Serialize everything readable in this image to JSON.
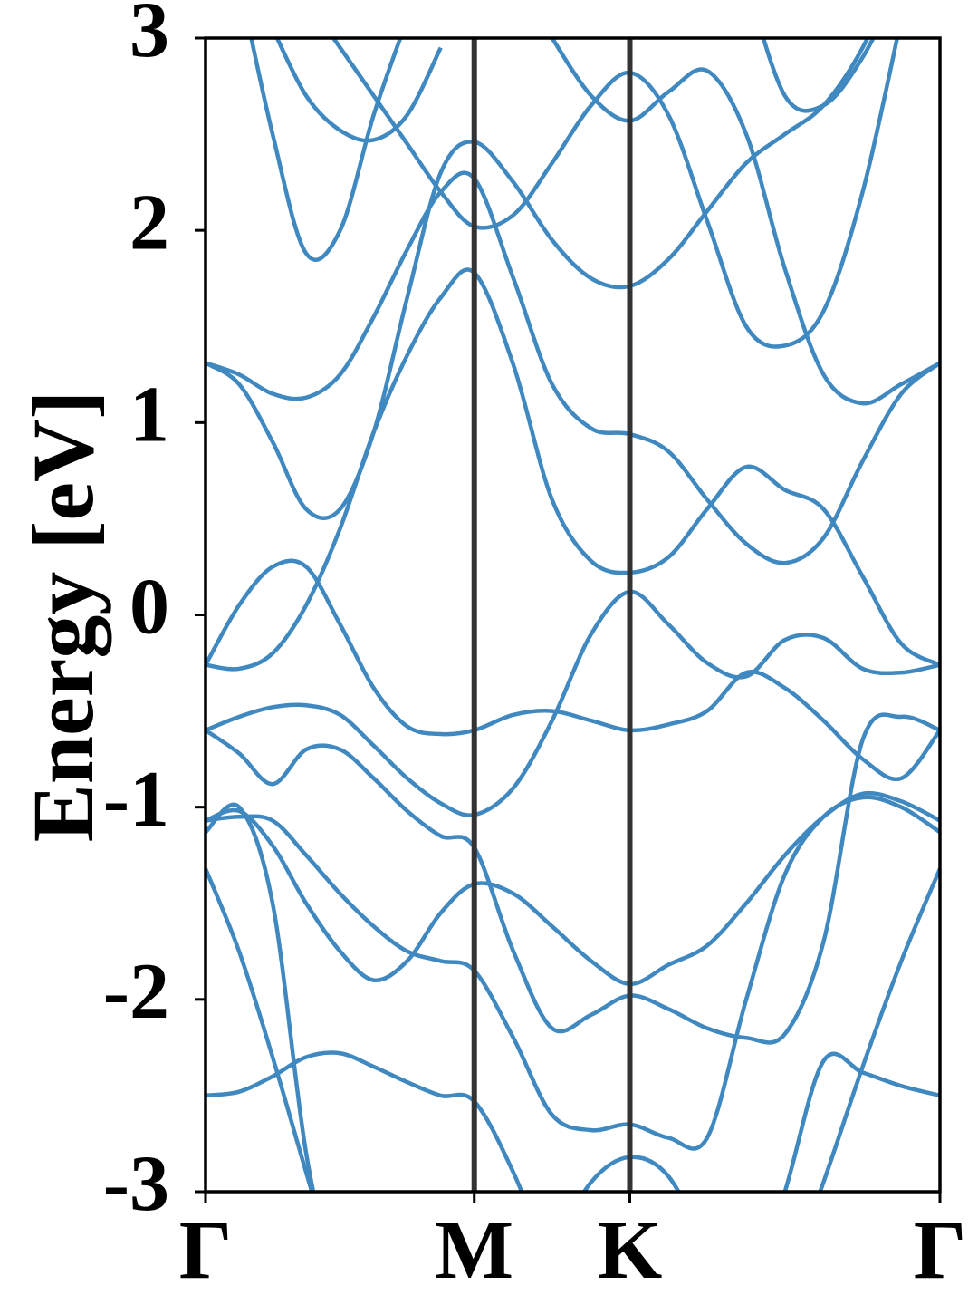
{
  "chart_data": {
    "type": "line",
    "ylabel": "Energy [eV]",
    "x": [
      0,
      0.072,
      0.144,
      0.216,
      0.289,
      0.361,
      0.433,
      0.505,
      0.577,
      0.661,
      0.744,
      0.828,
      0.911,
      0.994,
      1.077,
      1.161,
      1.244,
      1.327,
      1.411,
      1.494,
      1.577
    ],
    "xlim": [
      0,
      1.577
    ],
    "xticks": [
      {
        "value": 0,
        "label": "Γ"
      },
      {
        "value": 0.577,
        "label": "M"
      },
      {
        "value": 0.911,
        "label": "K"
      },
      {
        "value": 1.577,
        "label": "Γ"
      }
    ],
    "xgrid": true,
    "grid_color": "#333333",
    "ylim": [
      -3,
      3
    ],
    "yticks": [
      3,
      2,
      1,
      0,
      -1,
      -2,
      -3
    ],
    "series": [
      {
        "color": "#3f88c0",
        "values": [
          -2.5,
          -2.48,
          -2.4,
          -2.3,
          -2.28,
          -2.35,
          -2.43,
          -2.5,
          -2.53,
          -2.9,
          -3.4,
          null,
          null,
          null,
          null,
          -3.6,
          -3.0,
          -2.32,
          -2.38,
          -2.45,
          -2.5
        ]
      },
      {
        "color": "#3f88c0",
        "values": [
          -1.32,
          -1.75,
          -2.3,
          -2.9,
          -3.5,
          null,
          null,
          null,
          null,
          null,
          null,
          null,
          null,
          null,
          null,
          null,
          -3.5,
          -2.95,
          -2.35,
          -1.8,
          -1.32
        ]
      },
      {
        "color": "#3f88c0",
        "values": [
          -1.13,
          -1.0,
          -1.5,
          -2.8,
          -3.6,
          null,
          null,
          null,
          null,
          null,
          -3.3,
          -2.95,
          -2.82,
          -2.92,
          -3.3,
          null,
          null,
          null,
          null,
          null,
          null
        ]
      },
      {
        "color": "#3f88c0",
        "values": [
          -1.07,
          -1.05,
          -1.07,
          -1.25,
          -1.45,
          -1.62,
          -1.75,
          -1.8,
          -1.85,
          -2.2,
          -2.6,
          -2.68,
          -2.65,
          -2.72,
          -2.72,
          -2.0,
          -1.35,
          -1.05,
          -0.95,
          -1.0,
          -1.13
        ]
      },
      {
        "color": "#3f88c0",
        "values": [
          -1.07,
          -1.02,
          -1.2,
          -1.5,
          -1.75,
          -1.9,
          -1.8,
          -1.55,
          -1.4,
          -1.45,
          -1.62,
          -1.8,
          -1.92,
          -1.82,
          -1.72,
          -1.5,
          -1.25,
          -1.05,
          -0.93,
          -0.97,
          -1.07
        ]
      },
      {
        "color": "#3f88c0",
        "values": [
          -0.6,
          -0.72,
          -0.88,
          -0.7,
          -0.7,
          -0.85,
          -1.02,
          -1.15,
          -1.21,
          -1.75,
          -2.15,
          -2.08,
          -1.98,
          -2.05,
          -2.15,
          -2.2,
          -2.18,
          -1.7,
          -0.65,
          -0.53,
          -0.6
        ]
      },
      {
        "color": "#3f88c0",
        "values": [
          -0.6,
          -0.53,
          -0.48,
          -0.47,
          -0.52,
          -0.68,
          -0.85,
          -0.98,
          -1.04,
          -0.9,
          -0.55,
          -0.1,
          0.12,
          -0.05,
          -0.25,
          -0.32,
          -0.13,
          -0.12,
          -0.28,
          -0.3,
          -0.26
        ]
      },
      {
        "color": "#3f88c0",
        "values": [
          -0.26,
          0.05,
          0.25,
          0.25,
          -0.05,
          -0.38,
          -0.58,
          -0.62,
          -0.6,
          -0.52,
          -0.5,
          -0.55,
          -0.6,
          -0.57,
          -0.5,
          -0.3,
          -0.38,
          -0.55,
          -0.75,
          -0.85,
          -0.6
        ]
      },
      {
        "color": "#3f88c0",
        "values": [
          -0.26,
          -0.28,
          -0.2,
          0.05,
          0.45,
          0.95,
          1.35,
          1.65,
          1.78,
          1.3,
          0.6,
          0.28,
          0.22,
          0.3,
          0.55,
          0.77,
          0.65,
          0.55,
          0.2,
          -0.15,
          -0.26
        ]
      },
      {
        "color": "#3f88c0",
        "values": [
          1.31,
          1.2,
          0.9,
          0.55,
          0.55,
          0.95,
          1.65,
          2.3,
          2.46,
          2.25,
          1.95,
          1.75,
          1.71,
          1.85,
          2.1,
          2.35,
          2.5,
          2.65,
          2.95,
          3.4,
          null
        ]
      },
      {
        "color": "#3f88c0",
        "values": [
          1.31,
          1.25,
          1.15,
          1.13,
          1.25,
          1.55,
          1.9,
          2.2,
          2.27,
          1.75,
          1.2,
          0.97,
          0.94,
          0.85,
          0.6,
          0.37,
          0.27,
          0.4,
          0.8,
          1.15,
          1.31
        ]
      },
      {
        "color": "#3f88c0",
        "values": [
          null,
          3.3,
          2.5,
          1.88,
          2.0,
          2.6,
          3.1,
          null,
          null,
          null,
          null,
          null,
          null,
          null,
          null,
          null,
          null,
          null,
          null,
          null,
          null
        ]
      },
      {
        "color": "#3f88c0",
        "values": [
          null,
          null,
          null,
          3.2,
          2.95,
          2.7,
          2.45,
          2.2,
          2.02,
          2.08,
          2.35,
          2.65,
          2.82,
          2.6,
          2.05,
          1.5,
          1.4,
          1.58,
          2.2,
          3.1,
          null
        ]
      },
      {
        "color": "#3f88c0",
        "values": [
          null,
          null,
          3.05,
          2.7,
          2.52,
          2.47,
          2.6,
          2.95,
          null,
          null,
          3.0,
          2.7,
          2.57,
          2.72,
          2.83,
          2.5,
          1.8,
          1.25,
          1.1,
          1.2,
          1.31
        ]
      },
      {
        "color": "#3f88c0",
        "values": [
          null,
          null,
          null,
          null,
          null,
          null,
          null,
          null,
          null,
          null,
          null,
          null,
          null,
          null,
          null,
          3.3,
          2.7,
          2.65,
          2.9,
          3.3,
          null
        ]
      }
    ]
  }
}
